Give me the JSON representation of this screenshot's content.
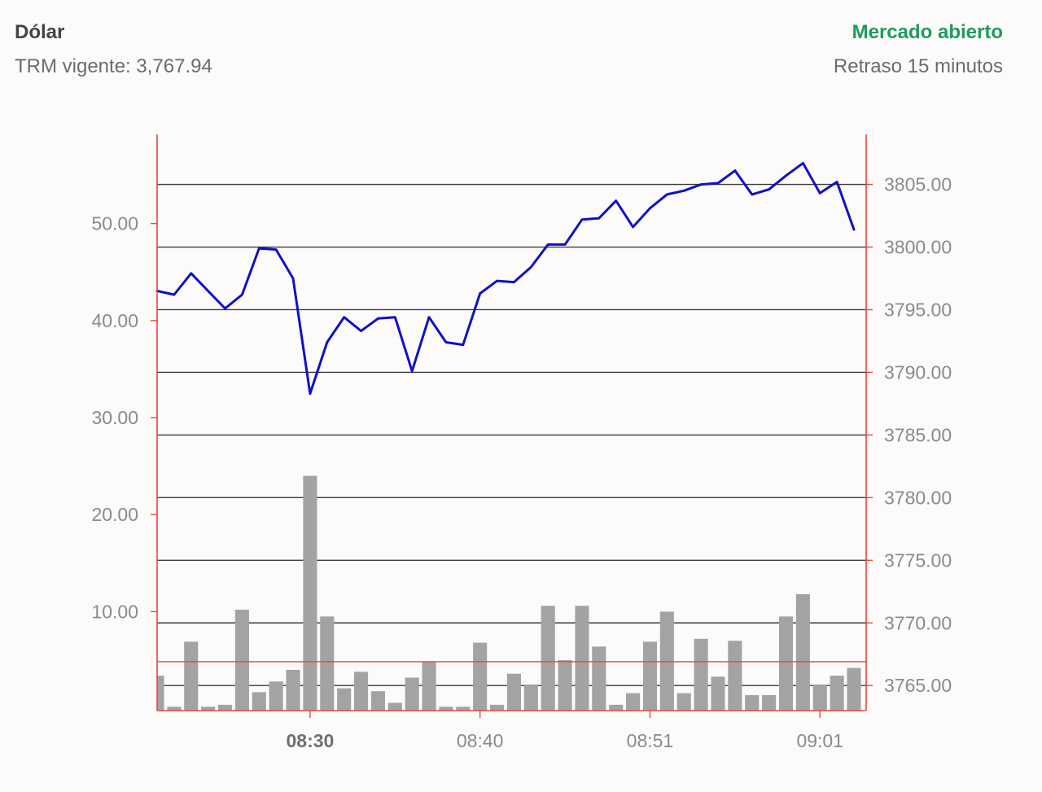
{
  "header": {
    "title": "Dólar",
    "trm": "TRM vigente: 3,767.94",
    "market_status": "Mercado abierto",
    "delay": "Retraso 15 minutos"
  },
  "colors": {
    "price_line": "#1010c8",
    "volume_bar": "#a3a3a3",
    "axis": "#e5473c",
    "grid": "#3a3a3a",
    "market_status": "#1f9a5f"
  },
  "chart_data": {
    "type": "line",
    "title": "",
    "xlabel": "",
    "ylabel": "",
    "x_ticks": [
      {
        "label": "08:30",
        "index": 9,
        "bold": true
      },
      {
        "label": "08:40",
        "index": 19,
        "bold": false
      },
      {
        "label": "08:51",
        "index": 29,
        "bold": false
      },
      {
        "label": "09:01",
        "index": 39,
        "bold": false
      }
    ],
    "left_axis": {
      "ylim": [
        -0.2,
        59.2
      ],
      "ticks": [
        10,
        20,
        30,
        40,
        50
      ],
      "tick_labels": [
        "10.00",
        "20.00",
        "30.00",
        "40.00",
        "50.00"
      ]
    },
    "right_axis": {
      "ylim": [
        3763.0,
        3809.0
      ],
      "ticks": [
        3765,
        3770,
        3775,
        3780,
        3785,
        3790,
        3795,
        3800,
        3805
      ],
      "tick_labels": [
        "3765.00",
        "3770.00",
        "3775.00",
        "3780.00",
        "3785.00",
        "3790.00",
        "3795.00",
        "3800.00",
        "3805.00"
      ],
      "reference_line": 3766.9
    },
    "grid": true,
    "series": [
      {
        "name": "",
        "type": "line",
        "axis": "right",
        "values": [
          3796.5,
          3796.2,
          3797.9,
          3796.5,
          3795.1,
          3796.2,
          3799.9,
          3799.8,
          3797.5,
          3788.3,
          3792.4,
          3794.4,
          3793.3,
          3794.3,
          3794.4,
          3790.1,
          3794.4,
          3792.4,
          3792.2,
          3796.3,
          3797.3,
          3797.2,
          3798.4,
          3800.2,
          3800.2,
          3802.2,
          3802.3,
          3803.7,
          3801.6,
          3803.1,
          3804.2,
          3804.5,
          3805.0,
          3805.1,
          3806.1,
          3804.2,
          3804.6,
          3805.7,
          3806.7,
          3804.3,
          3805.2,
          3801.4
        ]
      },
      {
        "name": "",
        "type": "bar",
        "axis": "left",
        "values": [
          3.4,
          0.2,
          6.9,
          0.2,
          0.4,
          10.2,
          1.7,
          2.8,
          4.0,
          24.0,
          9.5,
          2.1,
          3.8,
          1.8,
          0.6,
          3.2,
          4.8,
          0.2,
          0.2,
          6.8,
          0.4,
          3.6,
          2.4,
          10.6,
          5.0,
          10.6,
          6.4,
          0.4,
          1.6,
          6.9,
          10.0,
          1.6,
          7.2,
          3.3,
          7.0,
          1.4,
          1.4,
          9.5,
          11.8,
          2.4,
          3.4,
          4.2
        ]
      }
    ]
  }
}
